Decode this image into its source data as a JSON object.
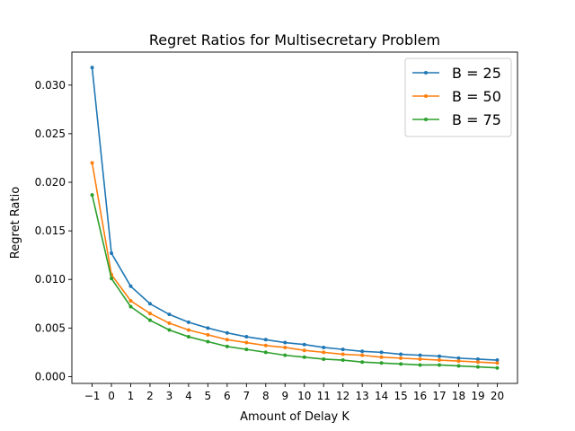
{
  "chart_data": {
    "type": "line",
    "title": "Regret Ratios for Multisecretary Problem",
    "xlabel": "Amount of Delay K",
    "ylabel": "Regret Ratio",
    "x": [
      -1,
      0,
      1,
      2,
      3,
      4,
      5,
      6,
      7,
      8,
      9,
      10,
      11,
      12,
      13,
      14,
      15,
      16,
      17,
      18,
      19,
      20
    ],
    "x_tick_labels": [
      "−1",
      "0",
      "1",
      "2",
      "3",
      "4",
      "5",
      "6",
      "7",
      "8",
      "9",
      "10",
      "11",
      "12",
      "13",
      "14",
      "15",
      "16",
      "17",
      "18",
      "19",
      "20"
    ],
    "y_ticks": [
      0.0,
      0.005,
      0.01,
      0.015,
      0.02,
      0.025,
      0.03
    ],
    "y_tick_labels": [
      "0.000",
      "0.005",
      "0.010",
      "0.015",
      "0.020",
      "0.025",
      "0.030"
    ],
    "xlim": [
      -2.05,
      21.05
    ],
    "ylim": [
      -0.0007,
      0.0334
    ],
    "grid": false,
    "legend_position": "top-right",
    "series": [
      {
        "name": "B = 25",
        "color": "#1f77b4",
        "values": [
          0.0318,
          0.0127,
          0.0093,
          0.0075,
          0.0064,
          0.0056,
          0.005,
          0.0045,
          0.0041,
          0.0038,
          0.0035,
          0.0033,
          0.003,
          0.0028,
          0.0026,
          0.0025,
          0.0023,
          0.0022,
          0.0021,
          0.0019,
          0.0018,
          0.0017
        ]
      },
      {
        "name": "B = 50",
        "color": "#ff7f0e",
        "values": [
          0.022,
          0.0105,
          0.0078,
          0.0065,
          0.0055,
          0.0048,
          0.0043,
          0.0038,
          0.0035,
          0.0032,
          0.003,
          0.0027,
          0.0025,
          0.0023,
          0.0022,
          0.002,
          0.0019,
          0.0018,
          0.0017,
          0.0016,
          0.0015,
          0.0014
        ]
      },
      {
        "name": "B = 75",
        "color": "#2ca02c",
        "values": [
          0.0187,
          0.0101,
          0.0072,
          0.0058,
          0.0048,
          0.0041,
          0.0036,
          0.0031,
          0.0028,
          0.0025,
          0.0022,
          0.002,
          0.0018,
          0.0017,
          0.0015,
          0.0014,
          0.0013,
          0.0012,
          0.0012,
          0.0011,
          0.001,
          0.0009
        ]
      }
    ]
  }
}
